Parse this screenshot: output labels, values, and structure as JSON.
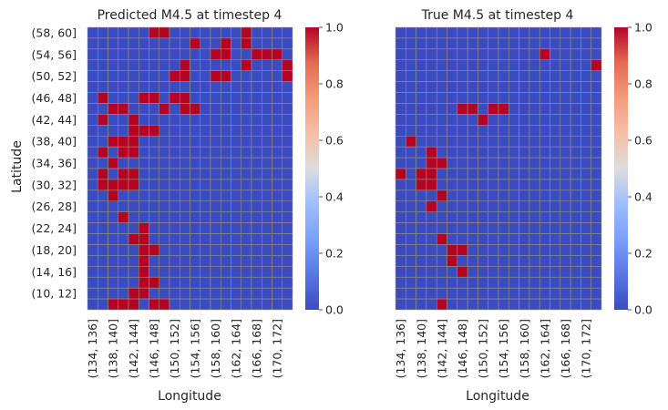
{
  "chart_data": [
    {
      "type": "heatmap",
      "title": "Predicted M4.5 at timestep 4",
      "xlabel": "Longitude",
      "ylabel": "Latitude",
      "x_ticklabels": [
        "(134, 136]",
        "(138, 140]",
        "(142, 144]",
        "(146, 148]",
        "(150, 152]",
        "(154, 156]",
        "(158, 160]",
        "(162, 164]",
        "(166, 168]",
        "(170, 172]"
      ],
      "y_ticklabels": [
        "(58, 60]",
        "(54, 56]",
        "(50, 52]",
        "(46, 48]",
        "(42, 44]",
        "(38, 40]",
        "(34, 36]",
        "(30, 32]",
        "(26, 28]",
        "(22, 24]",
        "(18, 20]",
        "(14, 16]",
        "(10, 12]"
      ],
      "n_rows": 26,
      "n_cols": 20,
      "value_range": [
        0,
        1
      ],
      "colorbar_ticks": [
        "0.0",
        "0.2",
        "0.4",
        "0.6",
        "0.8",
        "1.0"
      ],
      "ones": [
        [
          0,
          6
        ],
        [
          0,
          7
        ],
        [
          0,
          15
        ],
        [
          1,
          10
        ],
        [
          1,
          13
        ],
        [
          1,
          15
        ],
        [
          2,
          12
        ],
        [
          2,
          13
        ],
        [
          2,
          16
        ],
        [
          2,
          17
        ],
        [
          2,
          18
        ],
        [
          3,
          9
        ],
        [
          3,
          15
        ],
        [
          3,
          19
        ],
        [
          4,
          8
        ],
        [
          4,
          9
        ],
        [
          4,
          12
        ],
        [
          4,
          13
        ],
        [
          4,
          19
        ],
        [
          6,
          1
        ],
        [
          6,
          5
        ],
        [
          6,
          6
        ],
        [
          6,
          8
        ],
        [
          6,
          9
        ],
        [
          7,
          2
        ],
        [
          7,
          3
        ],
        [
          7,
          7
        ],
        [
          7,
          9
        ],
        [
          7,
          10
        ],
        [
          8,
          1
        ],
        [
          8,
          4
        ],
        [
          9,
          4
        ],
        [
          9,
          5
        ],
        [
          9,
          6
        ],
        [
          10,
          2
        ],
        [
          10,
          3
        ],
        [
          10,
          4
        ],
        [
          11,
          1
        ],
        [
          11,
          3
        ],
        [
          11,
          4
        ],
        [
          12,
          2
        ],
        [
          13,
          1
        ],
        [
          13,
          3
        ],
        [
          13,
          4
        ],
        [
          14,
          1
        ],
        [
          14,
          2
        ],
        [
          14,
          3
        ],
        [
          14,
          4
        ],
        [
          15,
          2
        ],
        [
          17,
          3
        ],
        [
          18,
          5
        ],
        [
          19,
          4
        ],
        [
          19,
          5
        ],
        [
          20,
          5
        ],
        [
          20,
          6
        ],
        [
          21,
          5
        ],
        [
          22,
          5
        ],
        [
          23,
          5
        ],
        [
          23,
          6
        ],
        [
          24,
          4
        ],
        [
          24,
          5
        ],
        [
          25,
          2
        ],
        [
          25,
          3
        ],
        [
          25,
          4
        ],
        [
          25,
          6
        ],
        [
          25,
          7
        ]
      ]
    },
    {
      "type": "heatmap",
      "title": "True M4.5 at timestep 4",
      "xlabel": "Longitude",
      "ylabel": "",
      "x_ticklabels": [
        "(134, 136]",
        "(138, 140]",
        "(142, 144]",
        "(146, 148]",
        "(150, 152]",
        "(154, 156]",
        "(158, 160]",
        "(162, 164]",
        "(166, 168]",
        "(170, 172]"
      ],
      "y_ticklabels": [],
      "n_rows": 26,
      "n_cols": 20,
      "value_range": [
        0,
        1
      ],
      "colorbar_ticks": [
        "0.0",
        "0.2",
        "0.4",
        "0.6",
        "0.8",
        "1.0"
      ],
      "ones": [
        [
          2,
          14
        ],
        [
          3,
          19
        ],
        [
          7,
          6
        ],
        [
          7,
          7
        ],
        [
          7,
          9
        ],
        [
          7,
          10
        ],
        [
          8,
          8
        ],
        [
          10,
          1
        ],
        [
          11,
          3
        ],
        [
          12,
          3
        ],
        [
          12,
          4
        ],
        [
          13,
          0
        ],
        [
          13,
          2
        ],
        [
          13,
          3
        ],
        [
          14,
          2
        ],
        [
          14,
          3
        ],
        [
          15,
          4
        ],
        [
          16,
          3
        ],
        [
          19,
          4
        ],
        [
          20,
          5
        ],
        [
          20,
          6
        ],
        [
          21,
          5
        ],
        [
          22,
          6
        ],
        [
          25,
          4
        ]
      ]
    }
  ]
}
